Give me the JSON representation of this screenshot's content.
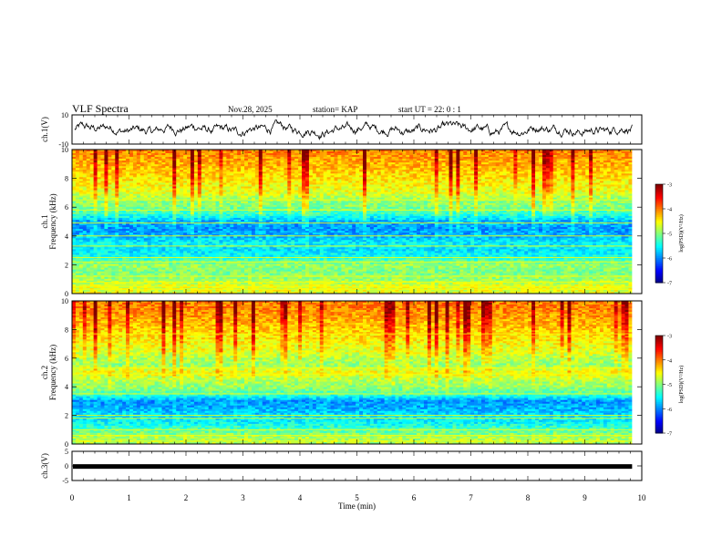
{
  "header": {
    "title": "VLF Spectra",
    "date": "Nov.28, 2025",
    "station": "station= KAP",
    "start": "start  UT =   22: 0   : 1"
  },
  "chart_data": {
    "type": "heatmap",
    "xlabel": "Time  (min)",
    "xlim": [
      0,
      10
    ],
    "x_ticks": [
      "0",
      "1",
      "2",
      "3",
      "4",
      "5",
      "6",
      "7",
      "8",
      "9",
      "10"
    ],
    "data_end_min": 9.83,
    "panels": [
      {
        "id": "ch1-wave",
        "kind": "waveform",
        "ylabel": "ch.1(V)",
        "ylim": [
          -10,
          10
        ],
        "y_ticks": [
          "10",
          "-10"
        ],
        "amplitude_typical": 4
      },
      {
        "id": "ch1-spec",
        "kind": "spectrogram",
        "ylabel": "ch.1\nFrequency  (kHz)",
        "ylabel_lines": [
          "ch.1",
          "Frequency  (kHz)"
        ],
        "ylim": [
          0,
          10
        ],
        "y_ticks": [
          "0",
          "2",
          "4",
          "6",
          "8",
          "10"
        ],
        "profile_khz": [
          0.5,
          1,
          1.5,
          2,
          2.5,
          3,
          3.5,
          4,
          4.5,
          5,
          5.5,
          6,
          6.5,
          7,
          7.5,
          8,
          8.5,
          9,
          9.5,
          10
        ],
        "profile_level": [
          -4.6,
          -4.9,
          -5.0,
          -4.9,
          -5.4,
          -5.6,
          -5.5,
          -5.8,
          -5.9,
          -5.8,
          -5.3,
          -5.0,
          -4.9,
          -4.6,
          -4.5,
          -4.4,
          -4.3,
          -4.2,
          -4.1,
          -4.0
        ],
        "lines_khz": [
          0.3,
          0.5,
          0.8,
          1.2,
          2.2,
          2.5,
          3.3,
          4.0,
          4.9,
          5.8,
          6.5
        ],
        "colorbar": {
          "label": "log(PSD)(V²/Hz)",
          "range": [
            -7,
            -3
          ],
          "ticks": [
            "-3",
            "-4",
            "-5",
            "-6",
            "-7"
          ]
        }
      },
      {
        "id": "ch2-spec",
        "kind": "spectrogram",
        "ylabel": "ch.2\nFrequency  (kHz)",
        "ylabel_lines": [
          "ch.2",
          "Frequency  (kHz)"
        ],
        "ylim": [
          0,
          10
        ],
        "y_ticks": [
          "0",
          "2",
          "4",
          "6",
          "8",
          "10"
        ],
        "profile_khz": [
          0.5,
          1,
          1.5,
          2,
          2.5,
          3,
          3.5,
          4,
          4.5,
          5,
          5.5,
          6,
          6.5,
          7,
          7.5,
          8,
          8.5,
          9,
          9.5,
          10
        ],
        "profile_level": [
          -4.8,
          -5.2,
          -5.5,
          -5.6,
          -5.8,
          -5.9,
          -5.2,
          -4.9,
          -4.8,
          -4.5,
          -4.9,
          -4.8,
          -4.6,
          -4.5,
          -4.4,
          -4.3,
          -4.2,
          -4.1,
          -4.0,
          -4.0
        ],
        "lines_khz": [
          0.2,
          0.6,
          1.0,
          1.8,
          2.0,
          3.5,
          4.9,
          5.3,
          7.7
        ],
        "colorbar": {
          "label": "log(PSD)(V²/Hz)",
          "range": [
            -7,
            -3
          ],
          "ticks": [
            "-3",
            "-4",
            "-5",
            "-6",
            "-7"
          ]
        }
      },
      {
        "id": "ch3-wave",
        "kind": "waveform",
        "ylabel": "ch.3(V)",
        "ylim": [
          -5,
          5
        ],
        "y_ticks": [
          "5",
          "0",
          "-5"
        ],
        "constant_value": -0.2
      }
    ]
  }
}
